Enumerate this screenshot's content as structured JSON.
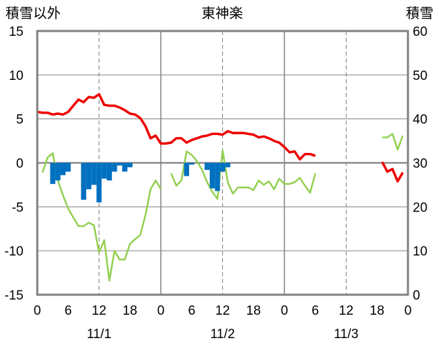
{
  "chart_data": {
    "type": "line",
    "title": "東神楽",
    "left_axis_label": "積雪以外",
    "right_axis_label": "積雪",
    "ylim_left": [
      -15,
      15
    ],
    "ylim_right": [
      0,
      60
    ],
    "y_ticks_left": [
      "15",
      "10",
      "5",
      "0",
      "-5",
      "-10",
      "-15"
    ],
    "y_ticks_right": [
      "60",
      "50",
      "40",
      "30",
      "20",
      "10",
      "0"
    ],
    "x_ticks": [
      "0",
      "6",
      "12",
      "18",
      "0",
      "6",
      "12",
      "18",
      "0",
      "6",
      "12",
      "18",
      "0"
    ],
    "date_labels": [
      "11/1",
      "11/2",
      "11/3"
    ],
    "grid": true,
    "colors": {
      "temperature": "#ee0000",
      "wind": "#92d050",
      "precip": "#0070c0",
      "snow": "#7030a0",
      "grid": "#808080",
      "day_divider": "#808080"
    },
    "series": [
      {
        "key": "temperature",
        "axis": "left",
        "style": "line",
        "points": [
          [
            0,
            5.8
          ],
          [
            1,
            5.7
          ],
          [
            2,
            5.7
          ],
          [
            3,
            5.5
          ],
          [
            4,
            5.6
          ],
          [
            5,
            5.5
          ],
          [
            6,
            5.8
          ],
          [
            7,
            6.5
          ],
          [
            8,
            7.2
          ],
          [
            9,
            6.9
          ],
          [
            10,
            7.5
          ],
          [
            11,
            7.4
          ],
          [
            12,
            7.8
          ],
          [
            13,
            6.6
          ],
          [
            14,
            6.5
          ],
          [
            15,
            6.5
          ],
          [
            16,
            6.3
          ],
          [
            17,
            6.0
          ],
          [
            18,
            5.6
          ],
          [
            19,
            5.5
          ],
          [
            20,
            5.1
          ],
          [
            21,
            4.2
          ],
          [
            22,
            2.8
          ],
          [
            23,
            3.1
          ],
          [
            24,
            2.2
          ],
          [
            25,
            2.2
          ],
          [
            26,
            2.3
          ],
          [
            27,
            2.8
          ],
          [
            28,
            2.8
          ],
          [
            29,
            2.3
          ],
          [
            30,
            2.6
          ],
          [
            31,
            2.8
          ],
          [
            32,
            3.0
          ],
          [
            33,
            3.1
          ],
          [
            34,
            3.3
          ],
          [
            35,
            3.3
          ],
          [
            36,
            3.2
          ],
          [
            37,
            3.6
          ],
          [
            38,
            3.4
          ],
          [
            39,
            3.4
          ],
          [
            40,
            3.4
          ],
          [
            41,
            3.3
          ],
          [
            42,
            3.2
          ],
          [
            43,
            2.9
          ],
          [
            44,
            3.0
          ],
          [
            45,
            2.8
          ],
          [
            46,
            2.5
          ],
          [
            47,
            2.3
          ],
          [
            48,
            1.8
          ],
          [
            49,
            1.2
          ],
          [
            50,
            1.3
          ],
          [
            51,
            0.4
          ],
          [
            52,
            1.0
          ],
          [
            53,
            1.0
          ],
          [
            54,
            0.8
          ],
          null,
          [
            67,
            0.1
          ],
          [
            68,
            -1.0
          ],
          [
            69,
            -0.7
          ],
          [
            70,
            -2.1
          ],
          [
            71,
            -1.1
          ]
        ]
      },
      {
        "key": "wind",
        "axis": "left",
        "style": "line",
        "points": [
          [
            1,
            -1.1
          ],
          [
            2,
            0.6
          ],
          [
            3,
            1.1
          ],
          [
            4,
            -2.0
          ],
          [
            5,
            -3.7
          ],
          [
            6,
            -5.2
          ],
          [
            7,
            -6.2
          ],
          [
            8,
            -7.2
          ],
          [
            9,
            -7.2
          ],
          [
            10,
            -6.8
          ],
          [
            11,
            -7.1
          ],
          [
            12,
            -10.2
          ],
          [
            13,
            -8.8
          ],
          [
            14,
            -13.4
          ],
          [
            15,
            -10.0
          ],
          [
            16,
            -11.0
          ],
          [
            17,
            -11.0
          ],
          [
            18,
            -9.2
          ],
          [
            19,
            -8.7
          ],
          [
            20,
            -8.2
          ],
          [
            21,
            -6.0
          ],
          [
            22,
            -3.0
          ],
          [
            23,
            -2.0
          ],
          [
            24,
            -3.0
          ],
          null,
          [
            26,
            -1.2
          ],
          [
            27,
            -2.6
          ],
          [
            28,
            -2.0
          ],
          [
            29,
            1.3
          ],
          [
            30,
            0.9
          ],
          [
            31,
            0.2
          ],
          [
            32,
            -0.8
          ],
          [
            33,
            -2.2
          ],
          [
            34,
            -3.3
          ],
          [
            35,
            -4.1
          ],
          [
            36,
            1.4
          ],
          [
            37,
            -2.2
          ],
          [
            38,
            -3.5
          ],
          [
            39,
            -2.8
          ],
          [
            40,
            -2.8
          ],
          [
            41,
            -2.8
          ],
          [
            42,
            -3.1
          ],
          [
            43,
            -2.0
          ],
          [
            44,
            -2.5
          ],
          [
            45,
            -2.1
          ],
          [
            46,
            -3.0
          ],
          [
            47,
            -1.8
          ],
          [
            48,
            -2.4
          ],
          [
            49,
            -2.4
          ],
          [
            50,
            -2.2
          ],
          [
            51,
            -1.7
          ],
          [
            52,
            -2.6
          ],
          [
            53,
            -3.4
          ],
          [
            54,
            -1.2
          ],
          null,
          [
            67,
            2.9
          ],
          [
            68,
            2.9
          ],
          [
            69,
            3.3
          ],
          [
            70,
            1.5
          ],
          [
            71,
            3.1
          ]
        ]
      },
      {
        "key": "precip",
        "axis": "left",
        "style": "bar",
        "points": [
          [
            3,
            -2.4
          ],
          [
            4,
            -2.0
          ],
          [
            5,
            -1.4
          ],
          [
            6,
            -1.0
          ],
          [
            9,
            -4.2
          ],
          [
            10,
            -3.0
          ],
          [
            11,
            -2.5
          ],
          [
            12,
            -4.5
          ],
          [
            13,
            -1.8
          ],
          [
            14,
            -2.0
          ],
          [
            15,
            -1.0
          ],
          [
            16,
            -0.3
          ],
          [
            17,
            -1.0
          ],
          [
            18,
            -0.5
          ],
          [
            29,
            -1.5
          ],
          [
            30,
            -0.2
          ],
          [
            33,
            -0.8
          ],
          [
            34,
            -2.9
          ],
          [
            35,
            -3.2
          ],
          [
            36,
            -1.0
          ],
          [
            37,
            -0.5
          ]
        ]
      },
      {
        "key": "snow",
        "axis": "right",
        "style": "line",
        "points": [
          [
            0,
            0
          ],
          [
            54,
            0
          ],
          null,
          [
            67,
            0
          ],
          [
            71,
            0
          ]
        ]
      }
    ]
  }
}
